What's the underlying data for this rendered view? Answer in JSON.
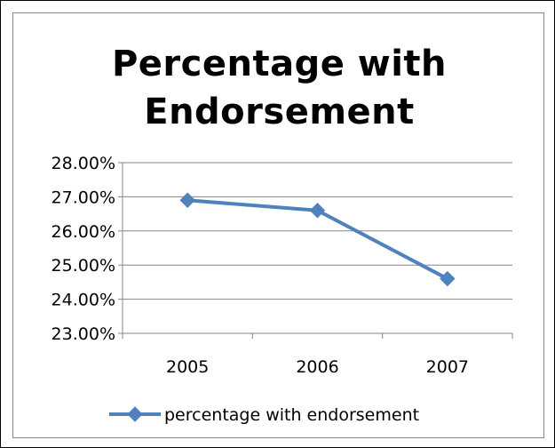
{
  "chart_data": {
    "type": "line",
    "title": [
      "Percentage with",
      "Endorsement"
    ],
    "categories": [
      "2005",
      "2006",
      "2007"
    ],
    "series": [
      {
        "name": "percentage with endorsement",
        "values": [
          26.9,
          26.6,
          24.6
        ],
        "color": "#4F81BD",
        "marker": "diamond"
      }
    ],
    "ylim": [
      23,
      28
    ],
    "yticks": [
      28,
      27,
      26,
      25,
      24,
      23
    ],
    "ytick_labels": [
      "28.00%",
      "27.00%",
      "26.00%",
      "25.00%",
      "24.00%",
      "23.00%"
    ],
    "xlabel": "",
    "ylabel": "",
    "grid": true,
    "legend": "bottom"
  }
}
